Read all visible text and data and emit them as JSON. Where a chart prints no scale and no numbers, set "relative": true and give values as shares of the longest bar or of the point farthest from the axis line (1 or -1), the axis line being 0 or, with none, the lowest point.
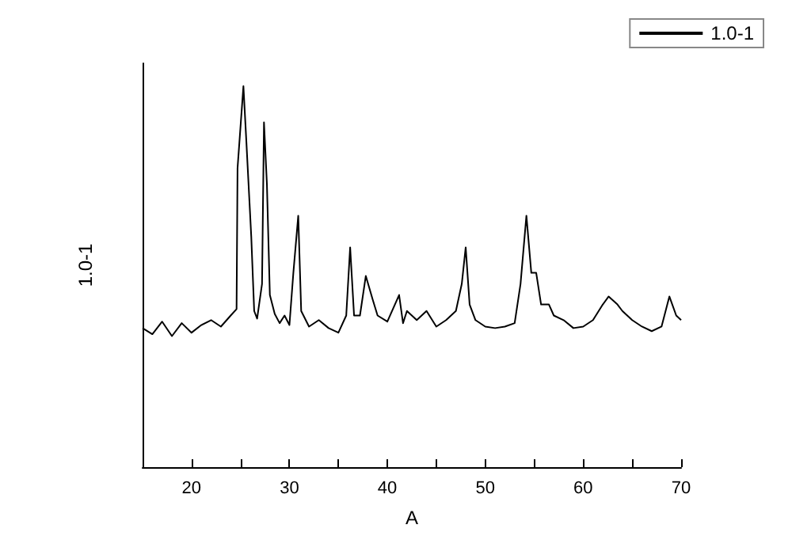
{
  "chart_data": {
    "type": "line",
    "xlabel": "A",
    "ylabel": "1.0-1",
    "relative": true,
    "xlim": [
      15,
      70
    ],
    "xticks": [
      20,
      {
        "value": 25,
        "label": null
      },
      30,
      {
        "value": 35,
        "label": null
      },
      40,
      {
        "value": 45,
        "label": null
      },
      50,
      {
        "value": 55,
        "label": null
      },
      60,
      {
        "value": 65,
        "label": null
      },
      70
    ],
    "tick_labels": "x",
    "legend": "top right",
    "marker": "none",
    "line_style": "solid",
    "x": [
      15,
      16,
      17,
      18,
      19,
      20,
      21,
      22,
      23,
      24,
      24.6,
      24.7,
      25.3,
      25.6,
      26.1,
      26.4,
      26.7,
      27.2,
      27.4,
      27.7,
      28,
      28.5,
      29,
      29.5,
      30,
      30.4,
      30.9,
      31.2,
      32,
      33,
      34,
      35,
      35.8,
      36.2,
      36.6,
      37.2,
      37.8,
      38.5,
      39,
      40,
      41.2,
      41.6,
      42,
      43,
      44,
      45,
      46,
      47,
      47.6,
      48,
      48.4,
      49,
      50,
      51,
      52,
      53,
      53.6,
      54.2,
      54.7,
      55.2,
      55.7,
      56.5,
      57,
      58,
      59,
      60,
      61,
      62,
      62.6,
      63.5,
      64,
      65,
      66,
      67,
      68,
      68.8,
      69.5,
      70
    ],
    "series": [
      {
        "name": "1.0-1",
        "color": "#000000",
        "values": [
          0.365,
          0.349,
          0.382,
          0.344,
          0.378,
          0.353,
          0.373,
          0.386,
          0.369,
          0.398,
          0.415,
          0.785,
          1.0,
          0.855,
          0.606,
          0.41,
          0.39,
          0.481,
          0.905,
          0.743,
          0.452,
          0.402,
          0.378,
          0.398,
          0.373,
          0.51,
          0.66,
          0.41,
          0.369,
          0.386,
          0.365,
          0.353,
          0.398,
          0.577,
          0.398,
          0.398,
          0.502,
          0.44,
          0.398,
          0.382,
          0.452,
          0.378,
          0.41,
          0.386,
          0.41,
          0.369,
          0.386,
          0.41,
          0.481,
          0.577,
          0.427,
          0.386,
          0.369,
          0.365,
          0.369,
          0.378,
          0.481,
          0.66,
          0.51,
          0.51,
          0.427,
          0.427,
          0.398,
          0.386,
          0.365,
          0.369,
          0.386,
          0.427,
          0.448,
          0.427,
          0.41,
          0.386,
          0.369,
          0.357,
          0.369,
          0.448,
          0.398,
          0.386
        ]
      }
    ]
  }
}
